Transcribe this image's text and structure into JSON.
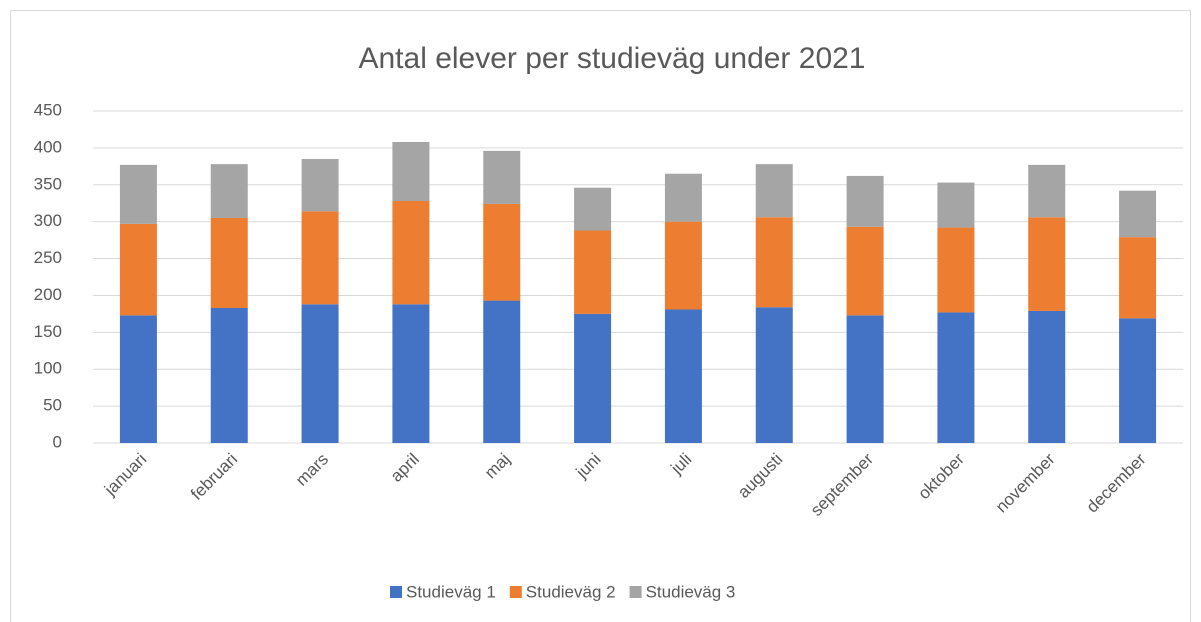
{
  "chart_data": {
    "type": "stacked_bar",
    "title": "Antal elever per studieväg under 2021",
    "categories": [
      "januari",
      "februari",
      "mars",
      "april",
      "maj",
      "juni",
      "juli",
      "augusti",
      "september",
      "oktober",
      "november",
      "december"
    ],
    "series": [
      {
        "name": "Studieväg 1",
        "color": "#4472c4",
        "values": [
          173,
          183,
          188,
          188,
          193,
          175,
          181,
          184,
          173,
          177,
          179,
          169
        ]
      },
      {
        "name": "Studieväg 2",
        "color": "#ed7d31",
        "values": [
          124,
          122,
          126,
          140,
          131,
          113,
          119,
          122,
          120,
          115,
          127,
          110
        ]
      },
      {
        "name": "Studieväg 3",
        "color": "#a5a5a5",
        "values": [
          80,
          73,
          71,
          80,
          72,
          58,
          65,
          72,
          69,
          61,
          71,
          63
        ]
      }
    ],
    "ylim": [
      0,
      450
    ],
    "yticks": [
      0,
      50,
      100,
      150,
      200,
      250,
      300,
      350,
      400,
      450
    ],
    "grid": true,
    "legend": "bottom"
  }
}
